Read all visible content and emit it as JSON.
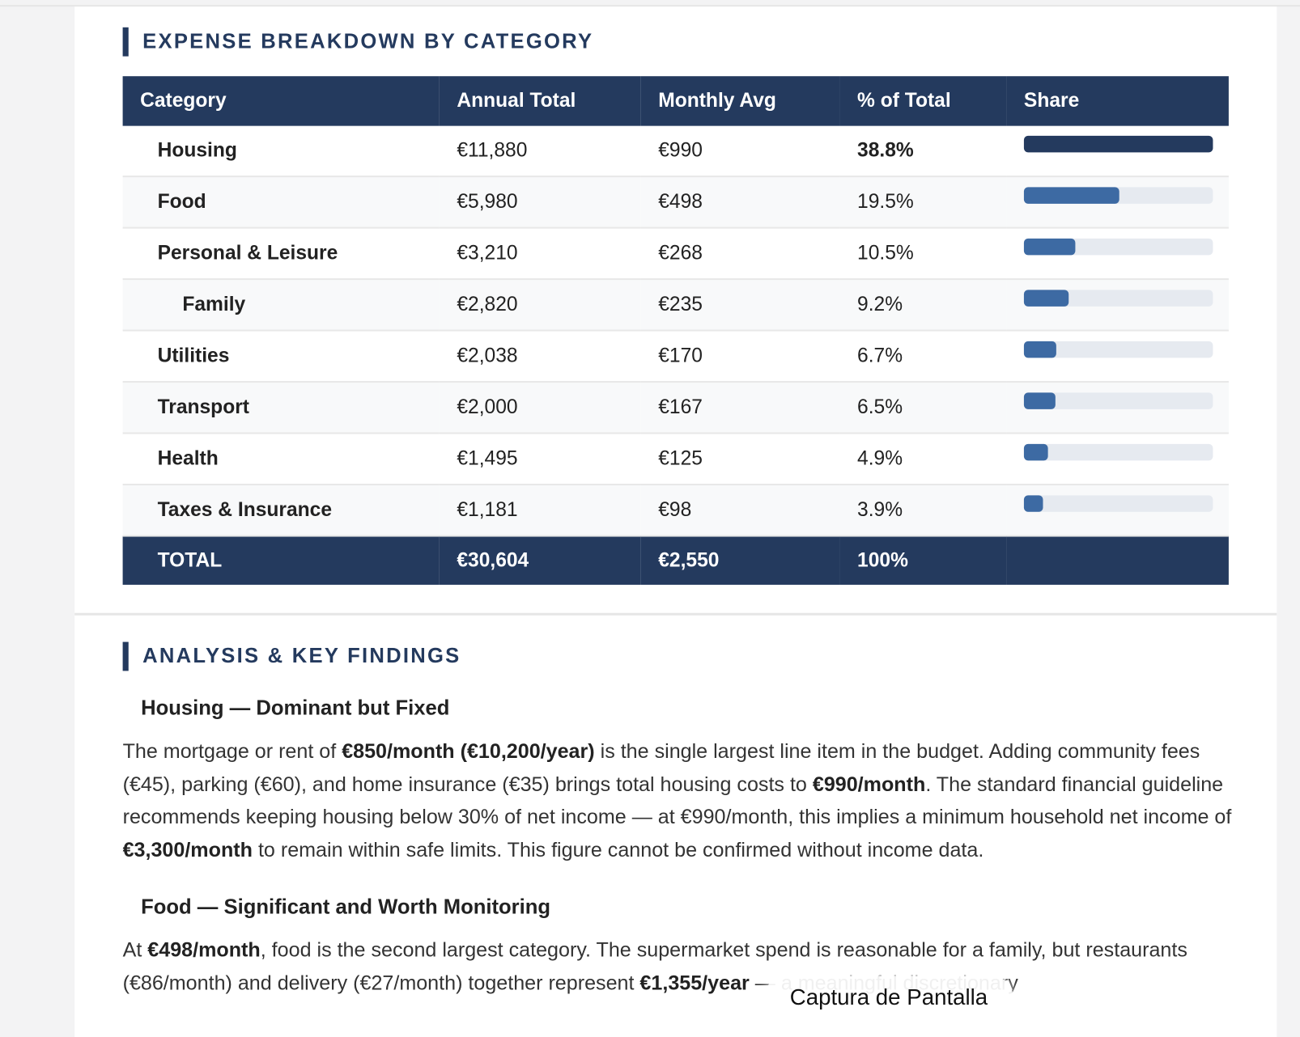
{
  "section1": {
    "title": "EXPENSE BREAKDOWN BY CATEGORY",
    "table": {
      "headers": [
        "Category",
        "Annual Total",
        "Monthly Avg",
        "% of Total",
        "Share"
      ],
      "rows": [
        {
          "category": "Housing",
          "annual": "€11,880",
          "monthly": "€990",
          "pct": "38.8%",
          "share": 38.8,
          "level": 1,
          "bold_pct": true
        },
        {
          "category": "Food",
          "annual": "€5,980",
          "monthly": "€498",
          "pct": "19.5%",
          "share": 19.5,
          "level": 1
        },
        {
          "category": "Personal & Leisure",
          "annual": "€3,210",
          "monthly": "€268",
          "pct": "10.5%",
          "share": 10.5,
          "level": 1
        },
        {
          "category": "Family",
          "annual": "€2,820",
          "monthly": "€235",
          "pct": "9.2%",
          "share": 9.2,
          "level": 2
        },
        {
          "category": "Utilities",
          "annual": "€2,038",
          "monthly": "€170",
          "pct": "6.7%",
          "share": 6.7,
          "level": 1
        },
        {
          "category": "Transport",
          "annual": "€2,000",
          "monthly": "€167",
          "pct": "6.5%",
          "share": 6.5,
          "level": 1
        },
        {
          "category": "Health",
          "annual": "€1,495",
          "monthly": "€125",
          "pct": "4.9%",
          "share": 4.9,
          "level": 1
        },
        {
          "category": "Taxes & Insurance",
          "annual": "€1,181",
          "monthly": "€98",
          "pct": "3.9%",
          "share": 3.9,
          "level": 1
        }
      ],
      "total": {
        "category": "TOTAL",
        "annual": "€30,604",
        "monthly": "€2,550",
        "pct": "100%"
      }
    }
  },
  "section2": {
    "title": "ANALYSIS & KEY FINDINGS",
    "findings": [
      {
        "heading": "Housing — Dominant but Fixed",
        "paragraph": [
          {
            "text": "The mortgage or rent of "
          },
          {
            "text": "€850/month (€10,200/year)",
            "bold": true
          },
          {
            "text": " is the single largest line item in the budget. Adding community fees (€45), parking (€60), and home insurance (€35) brings total housing costs to "
          },
          {
            "text": "€990/month",
            "bold": true
          },
          {
            "text": ". The standard financial guideline recommends keeping housing below 30% of net income — at €990/month, this implies a minimum household net income of "
          },
          {
            "text": "€3,300/month",
            "bold": true
          },
          {
            "text": " to remain within safe limits. This figure cannot be confirmed without income data."
          }
        ]
      },
      {
        "heading": "Food — Significant and Worth Monitoring",
        "paragraph": [
          {
            "text": "At "
          },
          {
            "text": "€498/month",
            "bold": true
          },
          {
            "text": ", food is the second largest category. The supermarket spend is reasonable for a family, but restaurants (€86/month) and delivery (€27/month) together represent "
          },
          {
            "text": "€1,355/year",
            "bold": true
          },
          {
            "text": " — a meaningful discretionary"
          }
        ]
      }
    ]
  },
  "toast": "Captura de Pantalla"
}
